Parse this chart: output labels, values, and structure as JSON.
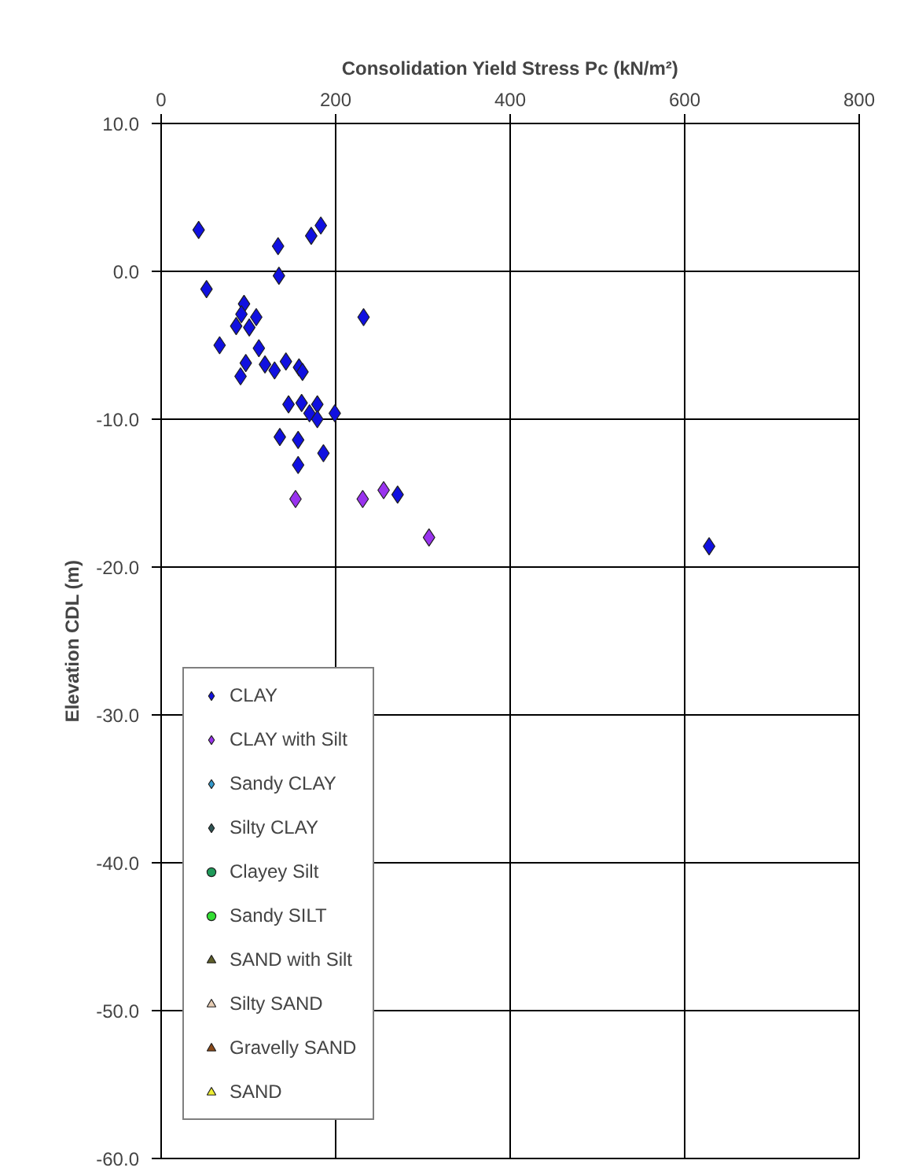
{
  "chart_data": {
    "type": "scatter",
    "xlabel": "Consolidation Yield Stress Pc (kN/m²)",
    "ylabel": "Elevation CDL (m)",
    "xlim": [
      0,
      800
    ],
    "xticks": [
      0,
      200,
      400,
      600,
      800
    ],
    "ylim": [
      -60,
      10
    ],
    "yticks": [
      {
        "value": -60,
        "label": "-60.0"
      },
      {
        "value": -50,
        "label": "-50.0"
      },
      {
        "value": -40,
        "label": "-40.0"
      },
      {
        "value": -30,
        "label": "-30.0"
      },
      {
        "value": -20,
        "label": "-20.0"
      },
      {
        "value": -10,
        "label": "-10.0"
      },
      {
        "value": 0,
        "label": "0.0"
      },
      {
        "value": 10,
        "label": "10.0"
      }
    ],
    "grid": true,
    "legend": "left",
    "series": [
      {
        "name": "CLAY",
        "color": "#1010e0",
        "marker": "diamond",
        "x": [
          43,
          134,
          172,
          183,
          135,
          52,
          232,
          95,
          92,
          109,
          86,
          101,
          67,
          112,
          97,
          91,
          119,
          130,
          143,
          158,
          162,
          146,
          161,
          179,
          170,
          179,
          199,
          136,
          157,
          186,
          157,
          271,
          628
        ],
        "values": [
          2.8,
          1.7,
          2.4,
          3.1,
          -0.3,
          -1.2,
          -3.1,
          -2.2,
          -2.9,
          -3.1,
          -3.7,
          -3.8,
          -5.0,
          -5.2,
          -6.2,
          -7.1,
          -6.3,
          -6.7,
          -6.1,
          -6.5,
          -6.8,
          -9.0,
          -8.9,
          -9.0,
          -9.6,
          -10.0,
          -9.6,
          -11.2,
          -11.4,
          -12.3,
          -13.1,
          -15.1,
          -18.6
        ]
      },
      {
        "name": "CLAY with Silt",
        "color": "#9933ee",
        "marker": "diamond",
        "x": [
          154,
          231,
          255,
          307
        ],
        "values": [
          -15.4,
          -15.4,
          -14.8,
          -18.0
        ]
      },
      {
        "name": "Sandy CLAY",
        "color": "#3399cc",
        "marker": "diamond"
      },
      {
        "name": "Silty CLAY",
        "color": "#2f5555",
        "marker": "diamond"
      },
      {
        "name": "Clayey Silt",
        "color": "#1f9a5a",
        "marker": "circle"
      },
      {
        "name": "Sandy SILT",
        "color": "#33dd33",
        "marker": "circle"
      },
      {
        "name": "SAND with Silt",
        "color": "#5f5f2a",
        "marker": "triangle"
      },
      {
        "name": "Silty SAND",
        "color": "#e6ccb3",
        "marker": "triangle"
      },
      {
        "name": "Gravelly SAND",
        "color": "#8b4a1a",
        "marker": "triangle"
      },
      {
        "name": "SAND",
        "color": "#eeee33",
        "marker": "triangle"
      }
    ]
  }
}
